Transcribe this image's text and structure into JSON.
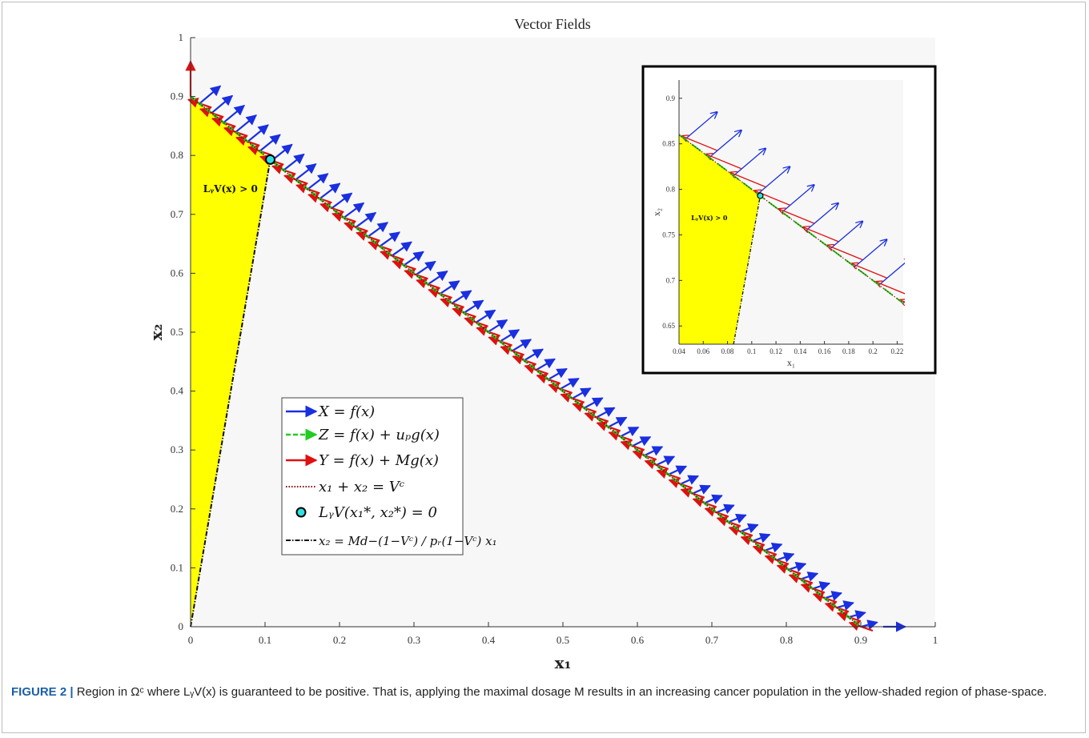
{
  "chart_data": [
    {
      "type": "line",
      "title": "Vector Fields",
      "xlabel": "x₁",
      "ylabel": "x₂",
      "xlim": [
        0,
        1
      ],
      "ylim": [
        0,
        1
      ],
      "x_ticks": [
        "0",
        "0.1",
        "0.2",
        "0.3",
        "0.4",
        "0.5",
        "0.6",
        "0.7",
        "0.8",
        "0.9",
        "1"
      ],
      "y_ticks": [
        "0",
        "0.1",
        "0.2",
        "0.3",
        "0.4",
        "0.5",
        "0.6",
        "0.7",
        "0.8",
        "0.9",
        "1"
      ],
      "grid": false,
      "legend_position": "center-left",
      "region_label": "LᵧV(x) > 0",
      "series": [
        {
          "name": "X = f(x)",
          "color": "#1a2fe0",
          "style": "arrow",
          "segments": [
            [
              [
                0.0,
                0.9
              ],
              [
                0.96,
                0.0
              ]
            ]
          ]
        },
        {
          "name": "Z = f(x) + uₚ g(x)",
          "color": "#22cc22",
          "style": "dashed-arrow",
          "segments": [
            [
              [
                0.0,
                0.9
              ],
              [
                0.9,
                0.0
              ]
            ]
          ]
        },
        {
          "name": "Y = f(x) + M g(x)",
          "color": "#e01010",
          "style": "arrow",
          "segments": [
            [
              [
                0.0,
                0.96
              ],
              [
                0.9,
                0.0
              ]
            ]
          ]
        },
        {
          "name": "x₁ + x₂ = Vᶜ",
          "color": "#8b0000",
          "style": "dotted",
          "segments": [
            [
              [
                0.0,
                0.9
              ],
              [
                0.9,
                0.0
              ]
            ]
          ]
        },
        {
          "name": "LᵧV(x₁*, x₂*) = 0",
          "color": "#30e0e0",
          "style": "marker",
          "points": [
            [
              0.107,
              0.793
            ]
          ]
        },
        {
          "name": "x₂ = (Md − (1 − Vᶜ)) / (pᵣ(1 − Vᶜ)) x₁",
          "color": "#111111",
          "style": "dash-dot",
          "segments": [
            [
              [
                0.0,
                0.0
              ],
              [
                0.107,
                0.793
              ]
            ]
          ]
        }
      ],
      "shaded_region": {
        "color": "#ffff00",
        "vertices": [
          [
            0.0,
            0.0
          ],
          [
            0.0,
            0.9
          ],
          [
            0.107,
            0.793
          ]
        ]
      }
    },
    {
      "type": "line",
      "title": "",
      "xlabel": "x₁",
      "ylabel": "x₂",
      "xlim": [
        0.04,
        0.225
      ],
      "ylim": [
        0.63,
        0.92
      ],
      "x_ticks": [
        "0.04",
        "0.06",
        "0.08",
        "0.1",
        "0.12",
        "0.14",
        "0.16",
        "0.18",
        "0.2",
        "0.22"
      ],
      "y_ticks": [
        "0.65",
        "0.7",
        "0.75",
        "0.8",
        "0.85",
        "0.9"
      ],
      "region_label": "LᵧV(x) > 0",
      "marker_point": [
        0.107,
        0.793
      ]
    }
  ],
  "legend": {
    "entries": [
      {
        "label": "X = f(x)",
        "color": "#1a2fe0"
      },
      {
        "label": "Z = f(x) + uₚg(x)",
        "color": "#22cc22"
      },
      {
        "label": "Y = f(x) + Mg(x)",
        "color": "#e01010"
      },
      {
        "label": "x₁ + x₂ = Vᶜ",
        "color": "#8b0000"
      },
      {
        "label": "LᵧV(x₁*, x₂*) = 0",
        "color": "#30e0e0"
      },
      {
        "label": "x₂ = Md−(1−Vᶜ) / pᵣ(1−Vᶜ) x₁",
        "color": "#111111"
      }
    ]
  },
  "caption": {
    "lead": "FIGURE 2 |",
    "text": " Region in Ωᶜ where LᵧV(x) is guaranteed to be positive. That is, applying the maximal dosage M results in an increasing cancer population in the yellow-shaded region of phase-space."
  },
  "colors": {
    "shade": "#ffff00",
    "blue": "#1a2fe0",
    "green": "#22cc22",
    "red": "#e01010",
    "marker": "#30e0e0",
    "plot_bg": "#f7f7f7"
  }
}
